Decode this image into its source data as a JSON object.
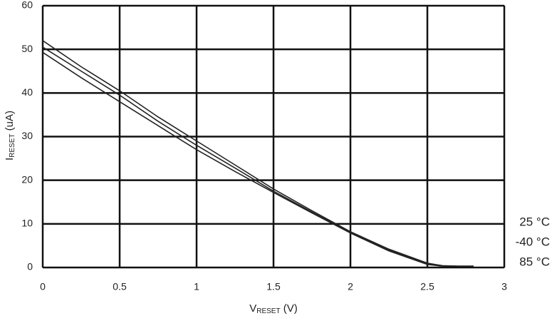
{
  "chart_data": {
    "type": "line",
    "x": [
      0,
      0.25,
      0.5,
      0.75,
      1,
      1.25,
      1.5,
      1.75,
      2,
      2.25,
      2.5,
      2.6,
      2.7,
      2.8
    ],
    "series": [
      {
        "name": "25 °C",
        "color": "#222222",
        "values": [
          52,
          46,
          40.5,
          34.5,
          29,
          23.5,
          18,
          13,
          8.2,
          4.2,
          1.0,
          0.4,
          0.3,
          0.3
        ]
      },
      {
        "name": "-40 °C",
        "color": "#222222",
        "values": [
          50.5,
          45,
          39.5,
          33.5,
          28,
          22.8,
          17.5,
          12.7,
          8,
          4,
          0.9,
          0.4,
          0.3,
          0.3
        ]
      },
      {
        "name": "85 °C",
        "color": "#222222",
        "values": [
          49.3,
          43.5,
          38,
          32.5,
          27,
          22,
          17.2,
          12.5,
          7.9,
          3.8,
          0.7,
          0.3,
          0.3,
          0.3
        ]
      }
    ],
    "x_label": [
      "V",
      "RESET",
      " (V)"
    ],
    "y_label": [
      "I",
      "RESET",
      " (uA)"
    ],
    "xlim": [
      0,
      3
    ],
    "xticks": [
      0,
      0.5,
      1,
      1.5,
      2,
      2.5,
      3
    ],
    "ylim": [
      0,
      60
    ],
    "yticks": [
      0,
      10,
      20,
      30,
      40,
      50,
      60
    ],
    "grid": true
  }
}
